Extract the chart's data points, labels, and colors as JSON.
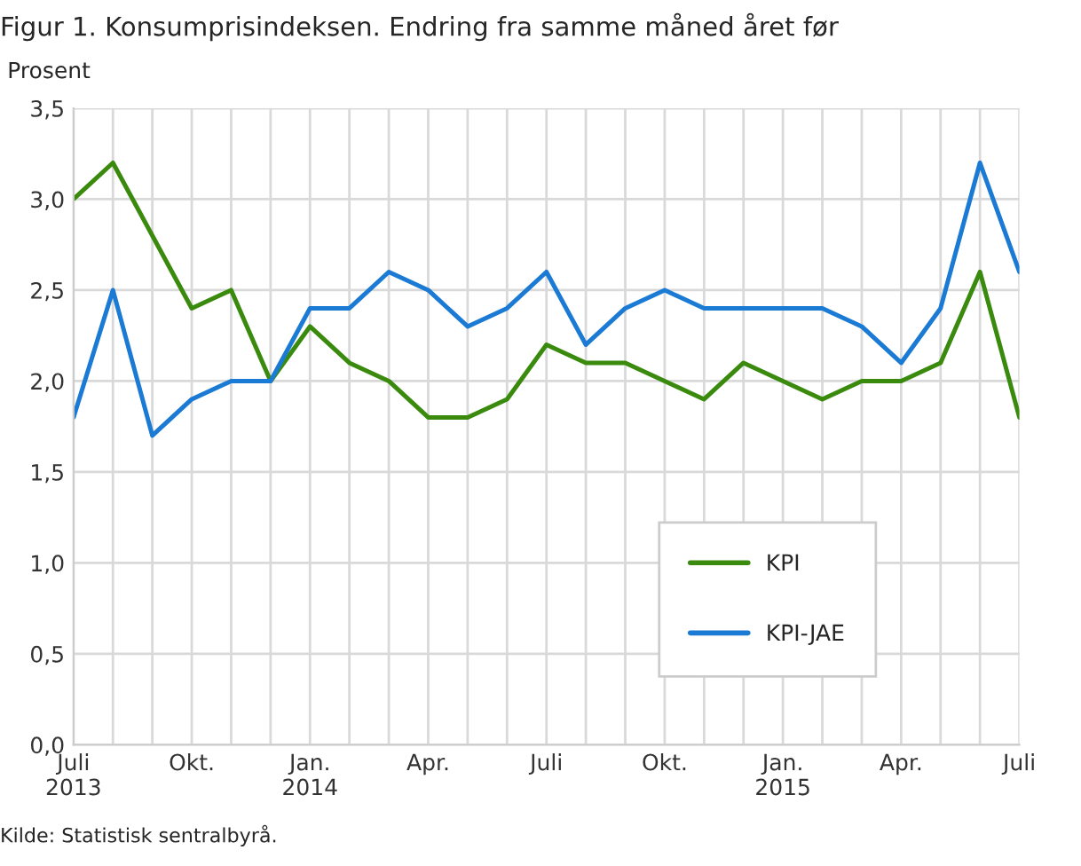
{
  "chart_data": {
    "type": "line",
    "title": "Figur 1. Konsumprisindeksen. Endring fra samme måned året før",
    "ylabel": "Prosent",
    "categories": [
      "Juli\n2013",
      null,
      null,
      "Okt.",
      null,
      null,
      "Jan.\n2014",
      null,
      null,
      "Apr.",
      null,
      null,
      "Juli",
      null,
      null,
      "Okt.",
      null,
      null,
      "Jan.\n2015",
      null,
      null,
      "Apr.",
      null,
      null,
      "Juli"
    ],
    "series": [
      {
        "name": "KPI",
        "color": "#3a8a0e",
        "values": [
          3.0,
          3.2,
          2.8,
          2.4,
          2.5,
          2.0,
          2.3,
          2.1,
          2.0,
          1.8,
          1.8,
          1.9,
          2.2,
          2.1,
          2.1,
          2.0,
          1.9,
          2.1,
          2.0,
          1.9,
          2.0,
          2.0,
          2.1,
          2.6,
          1.8
        ]
      },
      {
        "name": "KPI-JAE",
        "color": "#1a7ad4",
        "values": [
          1.8,
          2.5,
          1.7,
          1.9,
          2.0,
          2.0,
          2.4,
          2.4,
          2.6,
          2.5,
          2.3,
          2.4,
          2.6,
          2.2,
          2.4,
          2.5,
          2.4,
          2.4,
          2.4,
          2.4,
          2.3,
          2.1,
          2.4,
          3.2,
          2.6
        ]
      }
    ],
    "ylim": [
      0,
      3.5
    ],
    "yticks": [
      {
        "value": 0,
        "label": "0,0"
      },
      {
        "value": 0.5,
        "label": "0,5"
      },
      {
        "value": 1.0,
        "label": "1,0"
      },
      {
        "value": 1.5,
        "label": "1,5"
      },
      {
        "value": 2.0,
        "label": "2,0"
      },
      {
        "value": 2.5,
        "label": "2,5"
      },
      {
        "value": 3.0,
        "label": "3,0"
      },
      {
        "value": 3.5,
        "label": "3,5"
      }
    ],
    "grid": true,
    "legend": "bottom right",
    "line_style": "solid",
    "marker": "none",
    "annotations": [
      "Kilde: Statistisk sentralbyrå."
    ]
  }
}
